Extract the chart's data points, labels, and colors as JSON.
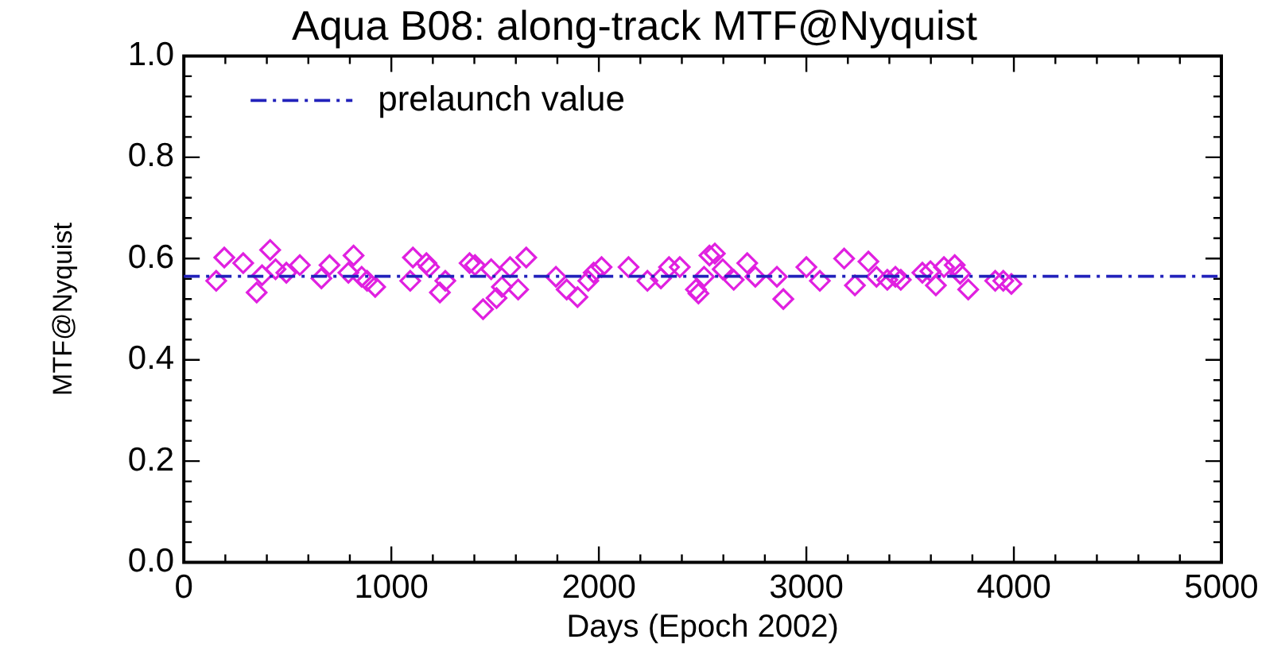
{
  "chart_data": {
    "type": "scatter",
    "title": "Aqua B08: along-track MTF@Nyquist",
    "xlabel": "Days (Epoch 2002)",
    "ylabel": "MTF@Nyquist",
    "series": [
      {
        "color": "#e020e0",
        "marker": "diamond",
        "x": [
          156,
          195,
          286,
          351,
          377,
          416,
          442,
          494,
          559,
          663,
          702,
          793,
          818,
          857,
          883,
          922,
          1091,
          1104,
          1169,
          1182,
          1234,
          1260,
          1377,
          1403,
          1442,
          1481,
          1507,
          1533,
          1572,
          1611,
          1650,
          1793,
          1845,
          1897,
          1949,
          1975,
          2013,
          2143,
          2234,
          2299,
          2338,
          2390,
          2468,
          2480,
          2507,
          2533,
          2559,
          2597,
          2650,
          2715,
          2754,
          2858,
          2889,
          3000,
          3065,
          3182,
          3234,
          3299,
          3338,
          3390,
          3429,
          3455,
          3559,
          3598,
          3624,
          3663,
          3715,
          3741,
          3780,
          3910,
          3949,
          3988
        ],
        "values": [
          0.556,
          0.602,
          0.591,
          0.533,
          0.567,
          0.617,
          0.579,
          0.572,
          0.587,
          0.561,
          0.587,
          0.572,
          0.606,
          0.564,
          0.556,
          0.544,
          0.556,
          0.602,
          0.591,
          0.583,
          0.533,
          0.556,
          0.591,
          0.587,
          0.5,
          0.579,
          0.522,
          0.544,
          0.583,
          0.539,
          0.602,
          0.564,
          0.539,
          0.524,
          0.556,
          0.572,
          0.583,
          0.583,
          0.556,
          0.561,
          0.583,
          0.583,
          0.539,
          0.531,
          0.564,
          0.606,
          0.61,
          0.579,
          0.558,
          0.591,
          0.564,
          0.564,
          0.52,
          0.583,
          0.556,
          0.6,
          0.547,
          0.594,
          0.564,
          0.558,
          0.564,
          0.558,
          0.572,
          0.575,
          0.547,
          0.583,
          0.587,
          0.57,
          0.539,
          0.556,
          0.556,
          0.55
        ]
      }
    ],
    "xlim": [
      0,
      5000
    ],
    "xticks": [
      0,
      1000,
      2000,
      3000,
      4000,
      5000
    ],
    "ylim": [
      0,
      1
    ],
    "yticks": [
      {
        "value": 0,
        "label": "0.0"
      },
      {
        "value": 0.2,
        "label": "0.2"
      },
      {
        "value": 0.4,
        "label": "0.4"
      },
      {
        "value": 0.6,
        "label": "0.6"
      },
      {
        "value": 0.8,
        "label": "0.8"
      },
      {
        "value": 1,
        "label": "1.0"
      }
    ],
    "ref_lines": [
      {
        "axis": "y",
        "value": 0.565,
        "label": "prelaunch value",
        "color": "#2222bb",
        "line_style": "dashed"
      }
    ],
    "legend": "top left",
    "grid": false
  }
}
